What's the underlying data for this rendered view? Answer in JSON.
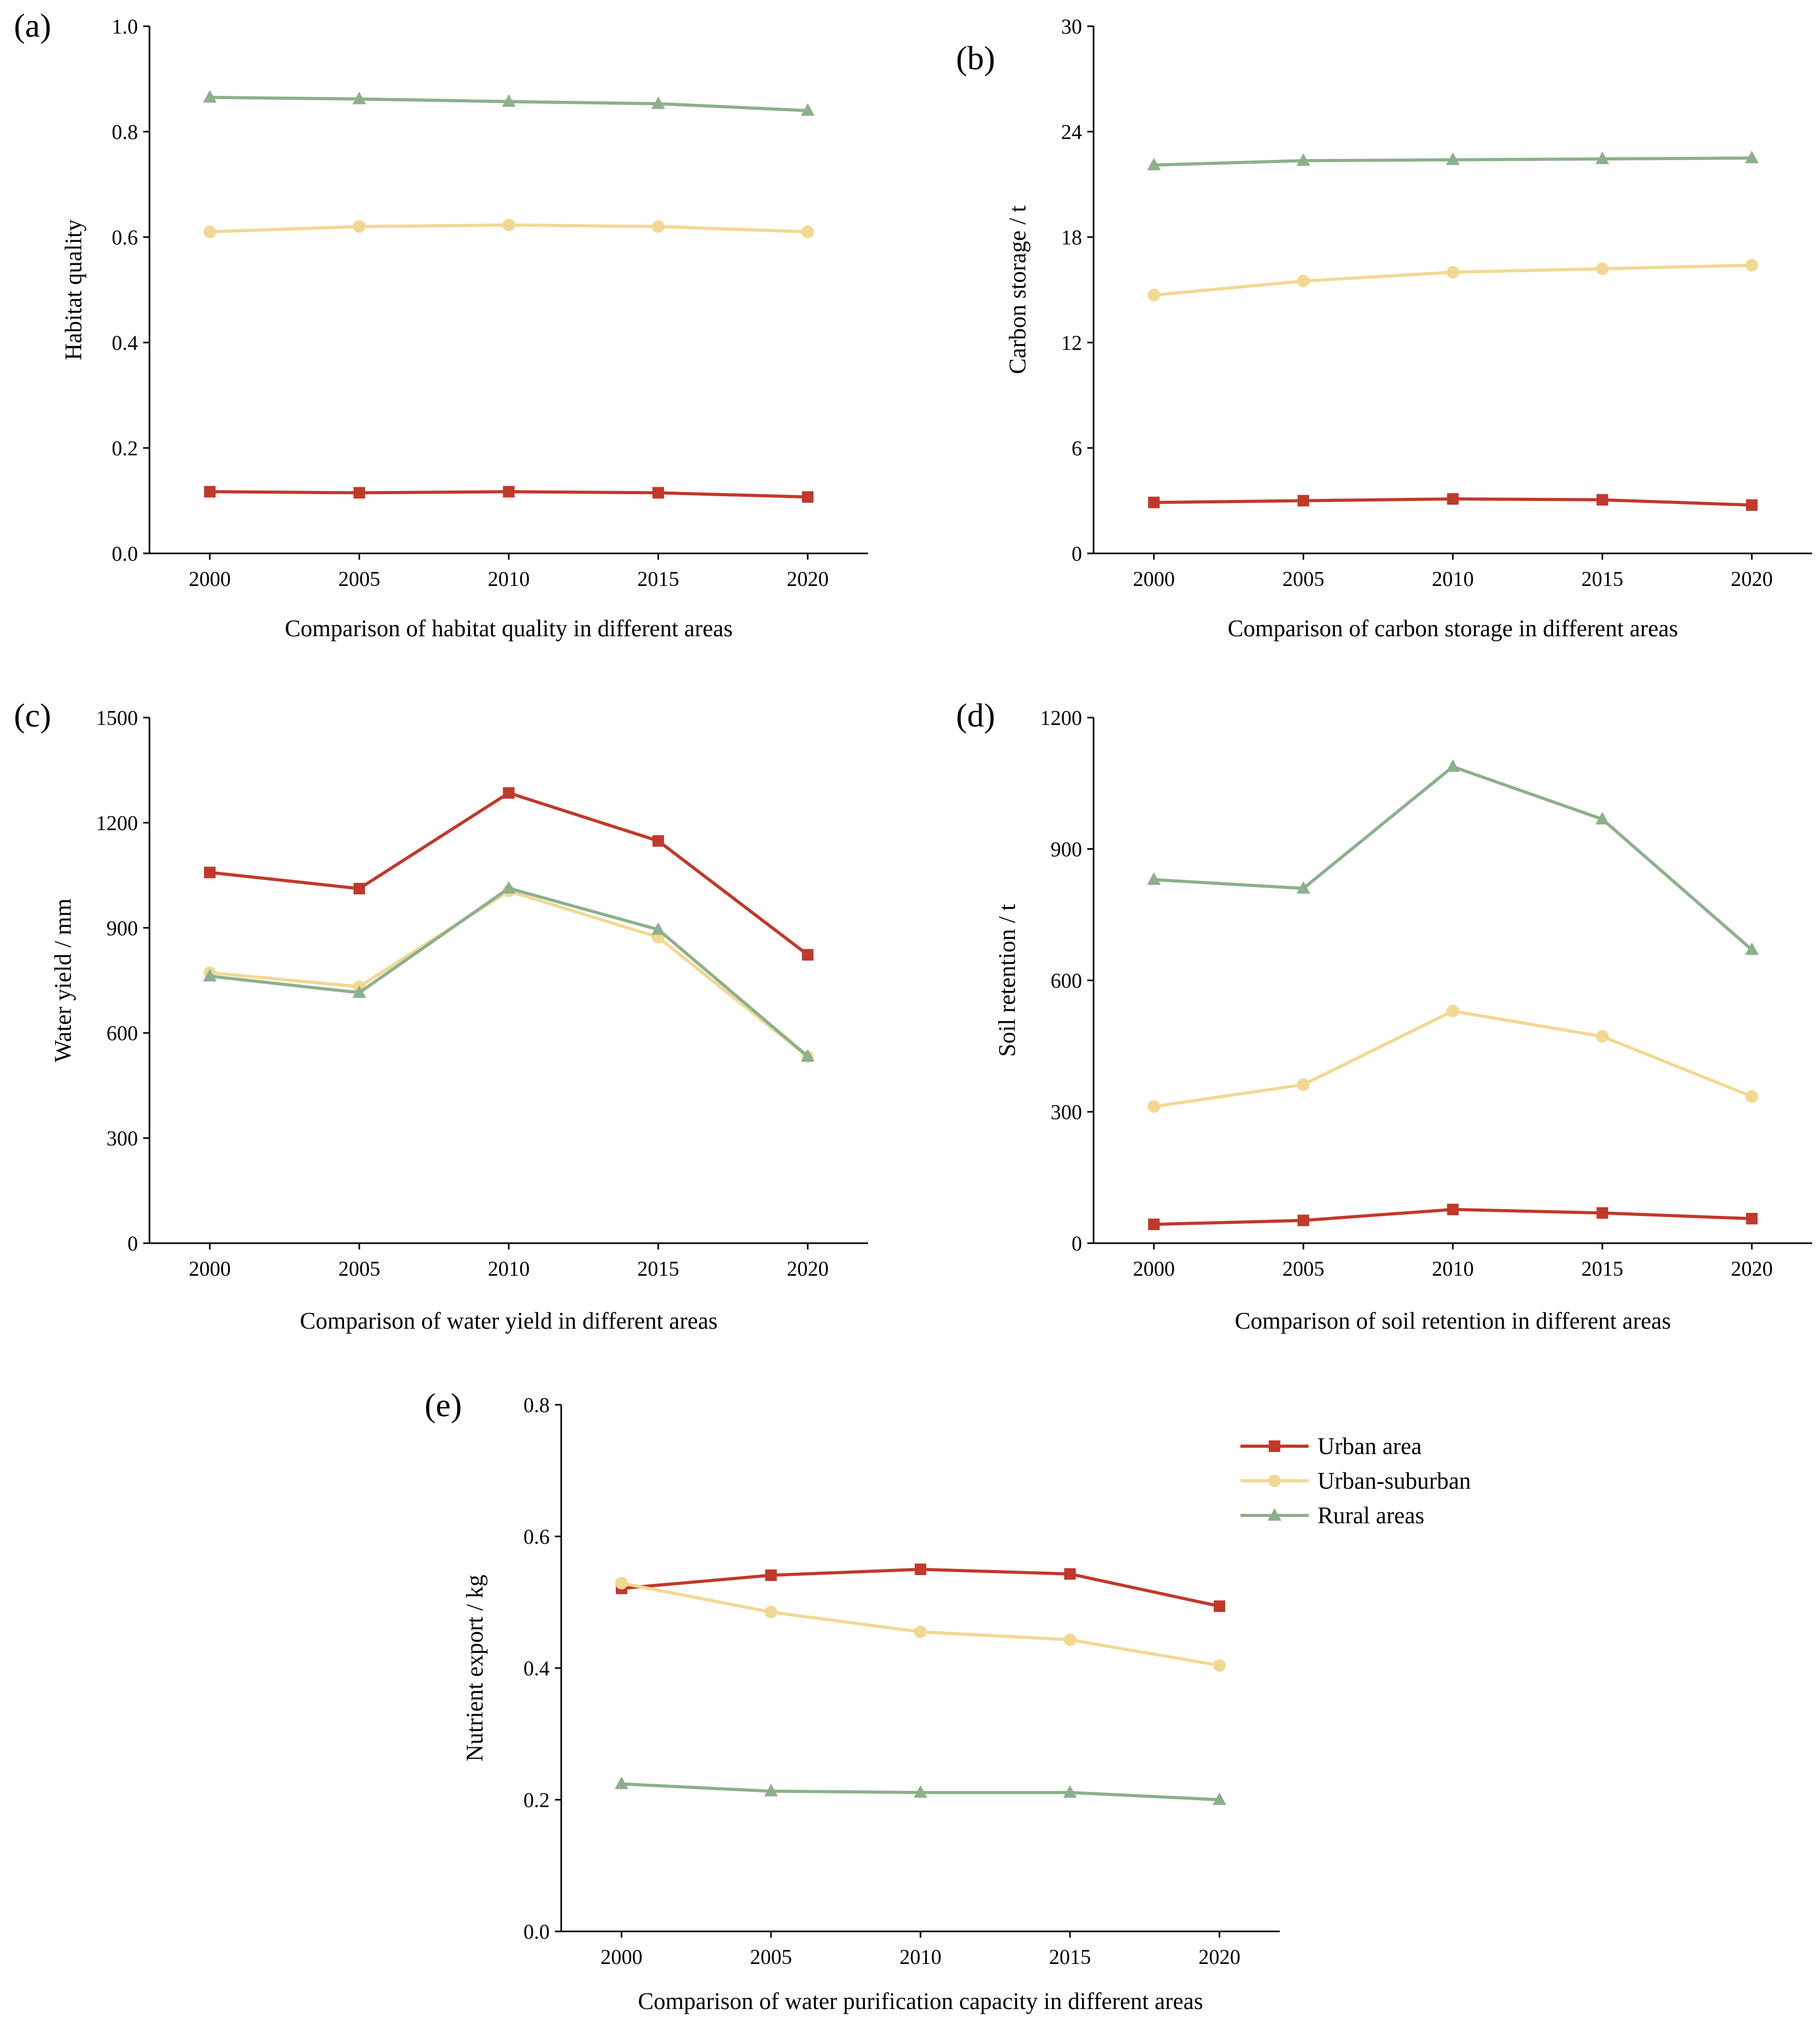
{
  "figure": {
    "legend": [
      {
        "label": "Urban area",
        "color": "#c0392b",
        "marker": "square"
      },
      {
        "label": "Urban-suburban",
        "color": "#f2d892",
        "marker": "circle"
      },
      {
        "label": "Rural areas",
        "color": "#8cb08c",
        "marker": "triangle"
      }
    ]
  },
  "chart_data": [
    {
      "panel_label": "(a)",
      "type": "line",
      "x": [
        "2000",
        "2005",
        "2010",
        "2015",
        "2020"
      ],
      "xlabel": "Comparison of habitat quality in different areas",
      "ylabel": "Habitat quality",
      "ylim": [
        0,
        1.0
      ],
      "yticks": [
        "0.0",
        "0.2",
        "0.4",
        "0.6",
        "0.8",
        "1.0"
      ],
      "series": [
        {
          "name": "Urban area",
          "values": [
            0.117,
            0.115,
            0.117,
            0.115,
            0.107
          ]
        },
        {
          "name": "Urban-suburban",
          "values": [
            0.61,
            0.62,
            0.623,
            0.62,
            0.61
          ]
        },
        {
          "name": "Rural areas",
          "values": [
            0.865,
            0.862,
            0.857,
            0.853,
            0.84
          ]
        }
      ]
    },
    {
      "panel_label": "(b)",
      "type": "line",
      "x": [
        "2000",
        "2005",
        "2010",
        "2015",
        "2020"
      ],
      "xlabel": "Comparison of carbon storage in different areas",
      "ylabel": "Carbon storage / t",
      "ylim": [
        0,
        30
      ],
      "yticks": [
        "0",
        "6",
        "12",
        "18",
        "24",
        "30"
      ],
      "series": [
        {
          "name": "Urban area",
          "values": [
            2.9,
            3.0,
            3.1,
            3.05,
            2.75
          ]
        },
        {
          "name": "Urban-suburban",
          "values": [
            14.7,
            15.5,
            16.0,
            16.2,
            16.4
          ]
        },
        {
          "name": "Rural areas",
          "values": [
            22.1,
            22.35,
            22.4,
            22.45,
            22.5
          ]
        }
      ]
    },
    {
      "panel_label": "(c)",
      "type": "line",
      "x": [
        "2000",
        "2005",
        "2010",
        "2015",
        "2020"
      ],
      "xlabel": "Comparison of water yield in different areas",
      "ylabel": "Water yield / mm",
      "ylim": [
        0,
        1500
      ],
      "yticks": [
        "0",
        "300",
        "600",
        "900",
        "1200",
        "1500"
      ],
      "series": [
        {
          "name": "Urban area",
          "values": [
            1058,
            1012,
            1285,
            1148,
            823
          ]
        },
        {
          "name": "Urban-suburban",
          "values": [
            772,
            732,
            1005,
            873,
            532
          ]
        },
        {
          "name": "Rural areas",
          "values": [
            762,
            715,
            1013,
            895,
            533
          ]
        }
      ]
    },
    {
      "panel_label": "(d)",
      "type": "line",
      "x": [
        "2000",
        "2005",
        "2010",
        "2015",
        "2020"
      ],
      "xlabel": "Comparison of soil retention in different areas",
      "ylabel": "Soil retention / t",
      "ylim": [
        0,
        1200
      ],
      "yticks": [
        "0",
        "300",
        "600",
        "900",
        "1200"
      ],
      "series": [
        {
          "name": "Urban area",
          "values": [
            43,
            52,
            77,
            69,
            56
          ]
        },
        {
          "name": "Urban-suburban",
          "values": [
            312,
            362,
            530,
            472,
            335
          ]
        },
        {
          "name": "Rural areas",
          "values": [
            830,
            810,
            1088,
            968,
            670
          ]
        }
      ]
    },
    {
      "panel_label": "(e)",
      "type": "line",
      "x": [
        "2000",
        "2005",
        "2010",
        "2015",
        "2020"
      ],
      "xlabel": "Comparison of water purification capacity in different areas",
      "ylabel": "Nutrient export / kg",
      "ylim": [
        0,
        0.8
      ],
      "yticks": [
        "0.0",
        "0.2",
        "0.4",
        "0.6",
        "0.8"
      ],
      "series": [
        {
          "name": "Urban area",
          "values": [
            0.521,
            0.541,
            0.55,
            0.543,
            0.494
          ]
        },
        {
          "name": "Urban-suburban",
          "values": [
            0.529,
            0.485,
            0.455,
            0.443,
            0.404
          ]
        },
        {
          "name": "Rural areas",
          "values": [
            0.224,
            0.213,
            0.211,
            0.211,
            0.2
          ]
        }
      ]
    }
  ]
}
